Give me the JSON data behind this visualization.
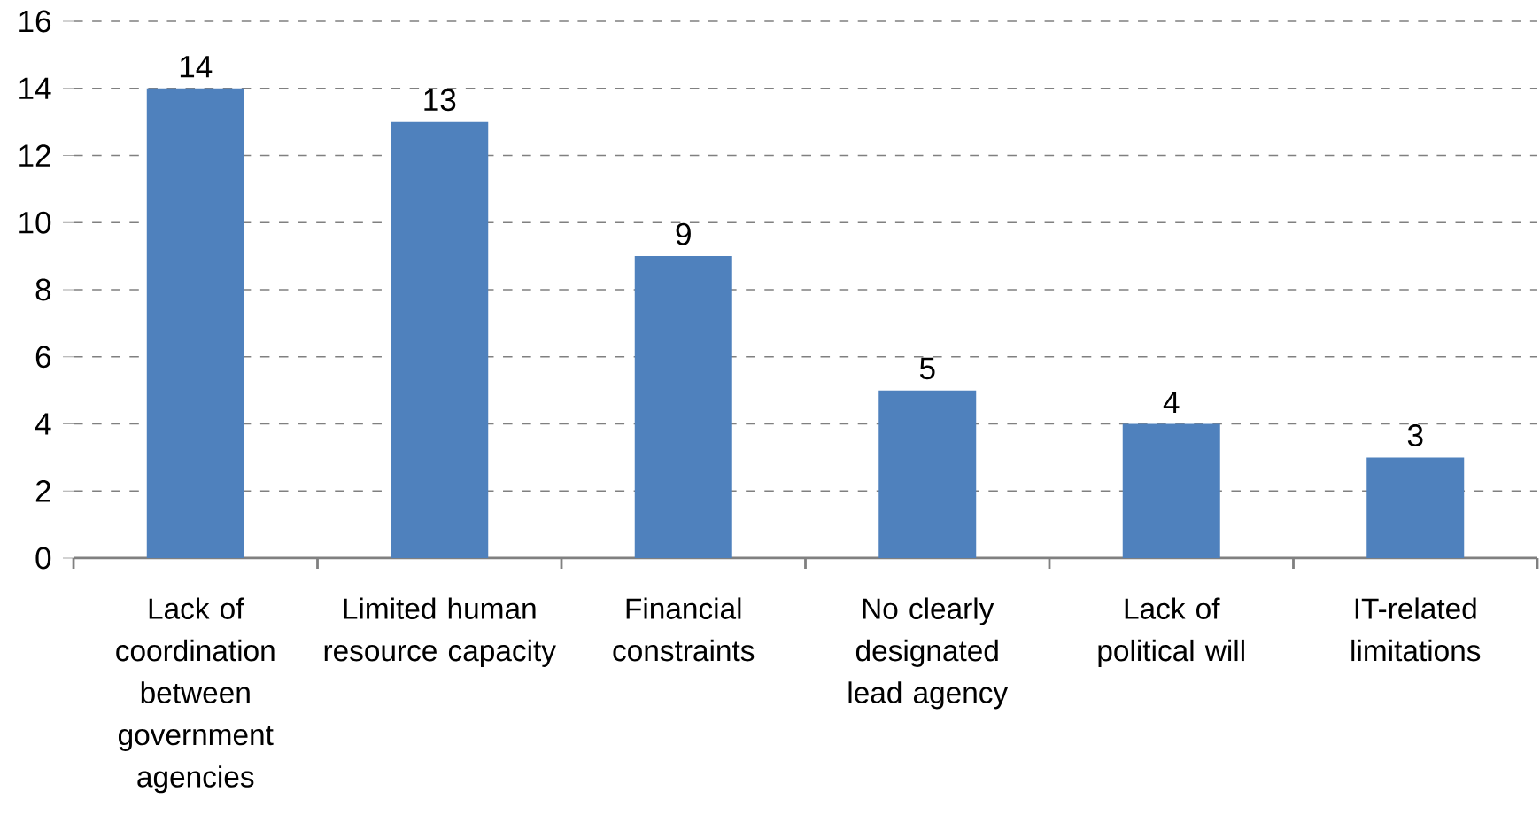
{
  "chart_data": {
    "type": "bar",
    "categories": [
      "Lack of coordination between government agencies",
      "Limited human resource capacity",
      "Financial constraints",
      "No clearly designated lead agency",
      "Lack of political will",
      "IT-related limitations"
    ],
    "values": [
      14,
      13,
      9,
      5,
      4,
      3
    ],
    "color": "#4f81bd",
    "ylim": [
      0,
      16
    ],
    "yticks": [
      0,
      2,
      4,
      6,
      8,
      10,
      12,
      14,
      16
    ],
    "grid": "y",
    "data_labels": true
  }
}
